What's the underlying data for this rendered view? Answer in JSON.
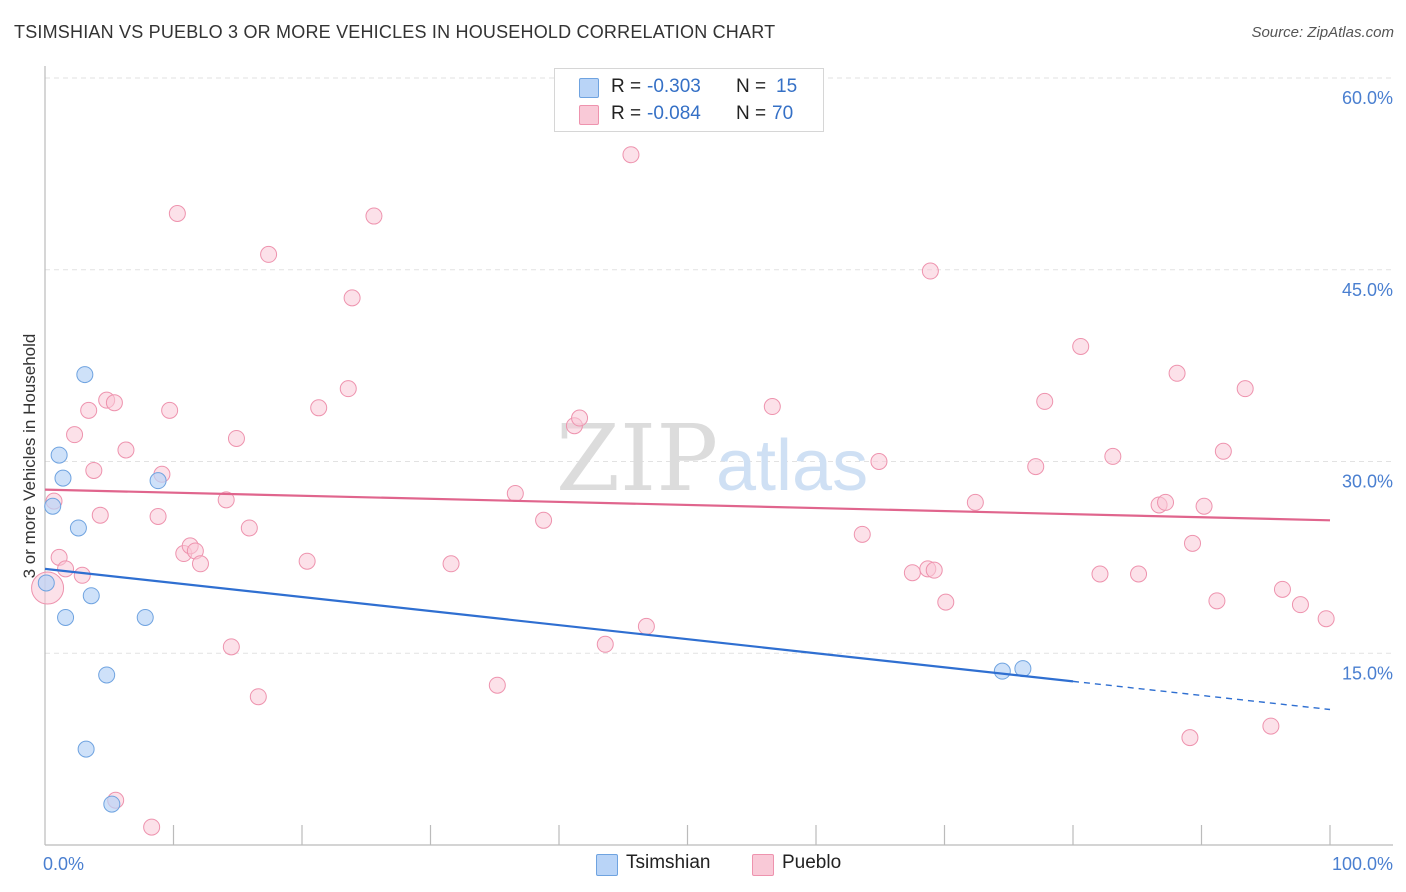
{
  "title": "TSIMSHIAN VS PUEBLO 3 OR MORE VEHICLES IN HOUSEHOLD CORRELATION CHART",
  "source": "Source: ZipAtlas.com",
  "watermark": {
    "zip": "ZIP",
    "atlas": "atlas"
  },
  "stats": {
    "rows": [
      {
        "r_label": "R =",
        "r_value": "-0.303",
        "n_label": "N =",
        "n_value": "15"
      },
      {
        "r_label": "R =",
        "r_value": "-0.084",
        "n_label": "N =",
        "n_value": "70"
      }
    ]
  },
  "legend": {
    "series1": "Tsimshian",
    "series2": "Pueblo"
  },
  "colors": {
    "blue_fill": "#b9d4f7",
    "blue_stroke": "#6fa3e0",
    "blue_line": "#2f6fd1",
    "pink_fill": "#f9c9d7",
    "pink_stroke": "#ee93ae",
    "pink_line": "#e0658d",
    "tick_label": "#4a7fd0",
    "grid": "#e2e2e2"
  },
  "chart_data": {
    "type": "scatter",
    "title": "TSIMSHIAN VS PUEBLO 3 OR MORE VEHICLES IN HOUSEHOLD CORRELATION CHART",
    "xlabel": "",
    "ylabel": "3 or more Vehicles in Household",
    "xlim": [
      0,
      100
    ],
    "ylim": [
      0,
      60
    ],
    "x_tick_labels": [
      "0.0%",
      "100.0%"
    ],
    "y_ticks": [
      15,
      30,
      45,
      60
    ],
    "y_tick_labels": [
      "15.0%",
      "30.0%",
      "45.0%",
      "60.0%"
    ],
    "series": [
      {
        "name": "Tsimshian",
        "points": [
          [
            0.1,
            20.5
          ],
          [
            0.6,
            26.5
          ],
          [
            1.1,
            30.5
          ],
          [
            1.4,
            28.7
          ],
          [
            1.6,
            17.8
          ],
          [
            2.6,
            24.8
          ],
          [
            3.1,
            36.8
          ],
          [
            3.2,
            7.5
          ],
          [
            3.6,
            19.5
          ],
          [
            4.8,
            13.3
          ],
          [
            5.2,
            3.2
          ],
          [
            7.8,
            17.8
          ],
          [
            8.8,
            28.5
          ],
          [
            74.5,
            13.6
          ],
          [
            76.1,
            13.8
          ]
        ],
        "trend": {
          "x_start": 0,
          "y_start": 21.6,
          "x_end": 80,
          "y_end": 12.8,
          "dashed_to_x": 100,
          "dashed_to_y": 10.6
        }
      },
      {
        "name": "Pueblo",
        "points": [
          [
            0.2,
            20.1
          ],
          [
            0.7,
            26.9
          ],
          [
            1.1,
            22.5
          ],
          [
            1.6,
            21.6
          ],
          [
            2.3,
            32.1
          ],
          [
            2.9,
            21.1
          ],
          [
            3.4,
            34.0
          ],
          [
            3.8,
            29.3
          ],
          [
            4.3,
            25.8
          ],
          [
            4.8,
            34.8
          ],
          [
            5.4,
            34.6
          ],
          [
            5.5,
            3.5
          ],
          [
            6.3,
            30.9
          ],
          [
            8.3,
            1.4
          ],
          [
            8.8,
            25.7
          ],
          [
            9.1,
            29.0
          ],
          [
            9.7,
            34.0
          ],
          [
            10.3,
            49.4
          ],
          [
            10.8,
            22.8
          ],
          [
            11.3,
            23.4
          ],
          [
            11.7,
            23.0
          ],
          [
            12.1,
            22.0
          ],
          [
            14.1,
            27.0
          ],
          [
            14.5,
            15.5
          ],
          [
            14.9,
            31.8
          ],
          [
            15.9,
            24.8
          ],
          [
            16.6,
            11.6
          ],
          [
            17.4,
            46.2
          ],
          [
            20.4,
            22.2
          ],
          [
            21.3,
            34.2
          ],
          [
            23.6,
            35.7
          ],
          [
            23.9,
            42.8
          ],
          [
            25.6,
            49.2
          ],
          [
            31.6,
            22.0
          ],
          [
            35.2,
            12.5
          ],
          [
            36.6,
            27.5
          ],
          [
            38.8,
            25.4
          ],
          [
            41.2,
            32.8
          ],
          [
            41.6,
            33.4
          ],
          [
            43.6,
            15.7
          ],
          [
            45.6,
            54.0
          ],
          [
            46.8,
            17.1
          ],
          [
            56.6,
            34.3
          ],
          [
            63.6,
            24.3
          ],
          [
            64.9,
            30.0
          ],
          [
            67.5,
            21.3
          ],
          [
            68.9,
            44.9
          ],
          [
            68.7,
            21.6
          ],
          [
            69.2,
            21.5
          ],
          [
            70.1,
            19.0
          ],
          [
            72.4,
            26.8
          ],
          [
            77.1,
            29.6
          ],
          [
            77.8,
            34.7
          ],
          [
            80.6,
            39.0
          ],
          [
            82.1,
            21.2
          ],
          [
            83.1,
            30.4
          ],
          [
            85.1,
            21.2
          ],
          [
            86.7,
            26.6
          ],
          [
            87.2,
            26.8
          ],
          [
            88.1,
            36.9
          ],
          [
            89.1,
            8.4
          ],
          [
            89.3,
            23.6
          ],
          [
            90.2,
            26.5
          ],
          [
            91.2,
            19.1
          ],
          [
            91.7,
            30.8
          ],
          [
            93.4,
            35.7
          ],
          [
            95.4,
            9.3
          ],
          [
            96.3,
            20.0
          ],
          [
            97.7,
            18.8
          ],
          [
            99.7,
            17.7
          ]
        ],
        "trend": {
          "x_start": 0,
          "y_start": 27.8,
          "x_end": 100,
          "y_end": 25.4
        }
      }
    ]
  }
}
